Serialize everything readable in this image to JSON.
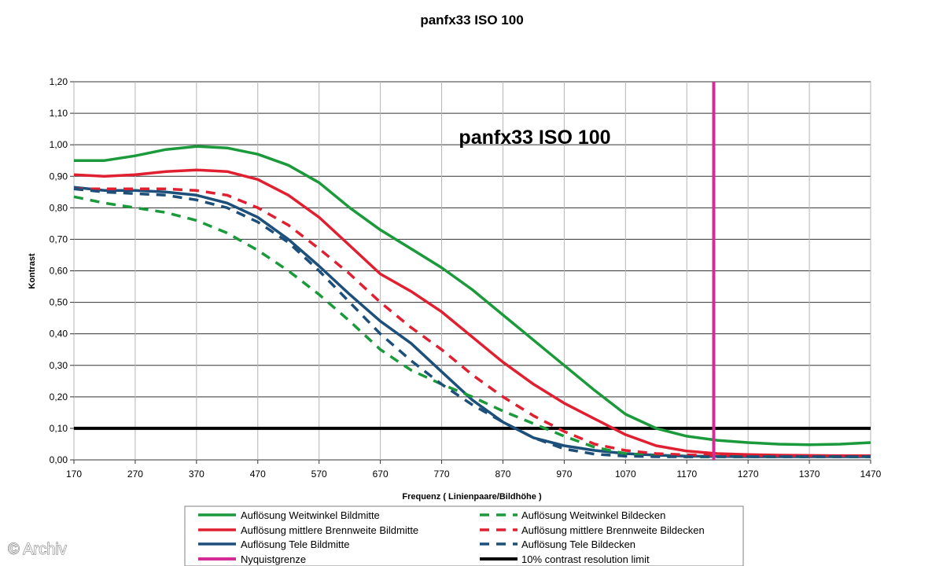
{
  "watermark": "© Archiv",
  "chart_data": {
    "type": "line",
    "title": "panfx33 ISO 100",
    "inner_title": "panfx33 ISO 100",
    "xlabel": "Frequenz ( Linienpaare/Bildhöhe )",
    "ylabel": "Kontrast",
    "xlim": [
      170,
      1470
    ],
    "ylim": [
      0,
      1.2
    ],
    "x_ticks": [
      "170",
      "270",
      "370",
      "470",
      "570",
      "670",
      "770",
      "870",
      "970",
      "1070",
      "1170",
      "1270",
      "1370",
      "1470"
    ],
    "y_ticks": [
      "0,00",
      "0,10",
      "0,20",
      "0,30",
      "0,40",
      "0,50",
      "0,60",
      "0,70",
      "0,80",
      "0,90",
      "1,00",
      "1,10",
      "1,20"
    ],
    "grid": "horizontal and vertical",
    "legend_position": "bottom",
    "series": [
      {
        "name": "Auflösung Weitwinkel Bildmitte",
        "color": "#1a9a3a",
        "style": "solid",
        "x": [
          170,
          220,
          270,
          320,
          370,
          420,
          470,
          520,
          570,
          620,
          670,
          720,
          770,
          820,
          870,
          920,
          970,
          1020,
          1070,
          1120,
          1170,
          1220,
          1270,
          1320,
          1370,
          1420,
          1470
        ],
        "y": [
          0.95,
          0.95,
          0.965,
          0.985,
          0.995,
          0.99,
          0.97,
          0.935,
          0.88,
          0.8,
          0.73,
          0.67,
          0.61,
          0.54,
          0.46,
          0.38,
          0.3,
          0.22,
          0.145,
          0.1,
          0.075,
          0.062,
          0.055,
          0.05,
          0.048,
          0.05,
          0.055
        ]
      },
      {
        "name": "Auflösung mittlere Brennweite Bildmitte",
        "color": "#e02030",
        "style": "solid",
        "x": [
          170,
          220,
          270,
          320,
          370,
          420,
          470,
          520,
          570,
          620,
          670,
          720,
          770,
          820,
          870,
          920,
          970,
          1020,
          1070,
          1120,
          1170,
          1220,
          1270,
          1320,
          1370,
          1420,
          1470
        ],
        "y": [
          0.905,
          0.9,
          0.905,
          0.915,
          0.92,
          0.915,
          0.89,
          0.84,
          0.77,
          0.68,
          0.59,
          0.535,
          0.47,
          0.39,
          0.31,
          0.24,
          0.18,
          0.13,
          0.08,
          0.045,
          0.028,
          0.02,
          0.017,
          0.015,
          0.014,
          0.013,
          0.013
        ]
      },
      {
        "name": "Auflösung Tele Bildmitte",
        "color": "#1c4f7a",
        "style": "solid",
        "x": [
          170,
          220,
          270,
          320,
          370,
          420,
          470,
          520,
          570,
          620,
          670,
          720,
          770,
          820,
          870,
          920,
          970,
          1020,
          1070,
          1120,
          1170,
          1220,
          1270,
          1320,
          1370,
          1420,
          1470
        ],
        "y": [
          0.865,
          0.855,
          0.855,
          0.85,
          0.84,
          0.815,
          0.77,
          0.7,
          0.615,
          0.525,
          0.44,
          0.37,
          0.28,
          0.19,
          0.12,
          0.07,
          0.045,
          0.03,
          0.02,
          0.015,
          0.012,
          0.011,
          0.01,
          0.01,
          0.01,
          0.01,
          0.01
        ]
      },
      {
        "name": "Auflösung Weitwinkel Bildecken",
        "color": "#1a9a3a",
        "style": "dashed",
        "x": [
          170,
          220,
          270,
          320,
          370,
          420,
          470,
          520,
          570,
          620,
          670,
          720,
          770,
          820,
          870,
          920,
          970,
          1020,
          1070,
          1120,
          1170,
          1220,
          1270,
          1320,
          1370,
          1420,
          1470
        ],
        "y": [
          0.835,
          0.815,
          0.8,
          0.785,
          0.76,
          0.72,
          0.665,
          0.6,
          0.525,
          0.44,
          0.35,
          0.285,
          0.24,
          0.2,
          0.155,
          0.115,
          0.075,
          0.04,
          0.02,
          0.012,
          0.01,
          0.01,
          0.01,
          0.01,
          0.01,
          0.01,
          0.01
        ]
      },
      {
        "name": "Auflösung mittlere Brennweite Bildecken",
        "color": "#e02030",
        "style": "dashed",
        "x": [
          170,
          220,
          270,
          320,
          370,
          420,
          470,
          520,
          570,
          620,
          670,
          720,
          770,
          820,
          870,
          920,
          970,
          1020,
          1070,
          1120,
          1170,
          1220,
          1270,
          1320,
          1370,
          1420,
          1470
        ],
        "y": [
          0.86,
          0.86,
          0.86,
          0.86,
          0.855,
          0.84,
          0.8,
          0.745,
          0.67,
          0.59,
          0.5,
          0.42,
          0.35,
          0.27,
          0.2,
          0.14,
          0.09,
          0.05,
          0.03,
          0.02,
          0.016,
          0.014,
          0.013,
          0.013,
          0.013,
          0.013,
          0.013
        ]
      },
      {
        "name": "Auflösung Tele Bildecken",
        "color": "#1c4f7a",
        "style": "dashed",
        "x": [
          170,
          220,
          270,
          320,
          370,
          420,
          470,
          520,
          570,
          620,
          670,
          720,
          770,
          820,
          870,
          920,
          970,
          1020,
          1070,
          1120,
          1170,
          1220,
          1270,
          1320,
          1370,
          1420,
          1470
        ],
        "y": [
          0.86,
          0.85,
          0.845,
          0.84,
          0.825,
          0.8,
          0.755,
          0.69,
          0.6,
          0.5,
          0.4,
          0.315,
          0.24,
          0.175,
          0.12,
          0.07,
          0.035,
          0.018,
          0.012,
          0.01,
          0.01,
          0.01,
          0.01,
          0.01,
          0.01,
          0.01,
          0.01
        ]
      },
      {
        "name": "Nyquistgrenze",
        "color": "#d42c96",
        "style": "solid",
        "x": [
          1214,
          1214
        ],
        "y": [
          0,
          1.2
        ]
      },
      {
        "name": "10% contrast resolution limit",
        "color": "#000000",
        "style": "solid",
        "x": [
          170,
          1470
        ],
        "y": [
          0.1,
          0.1
        ]
      }
    ]
  }
}
